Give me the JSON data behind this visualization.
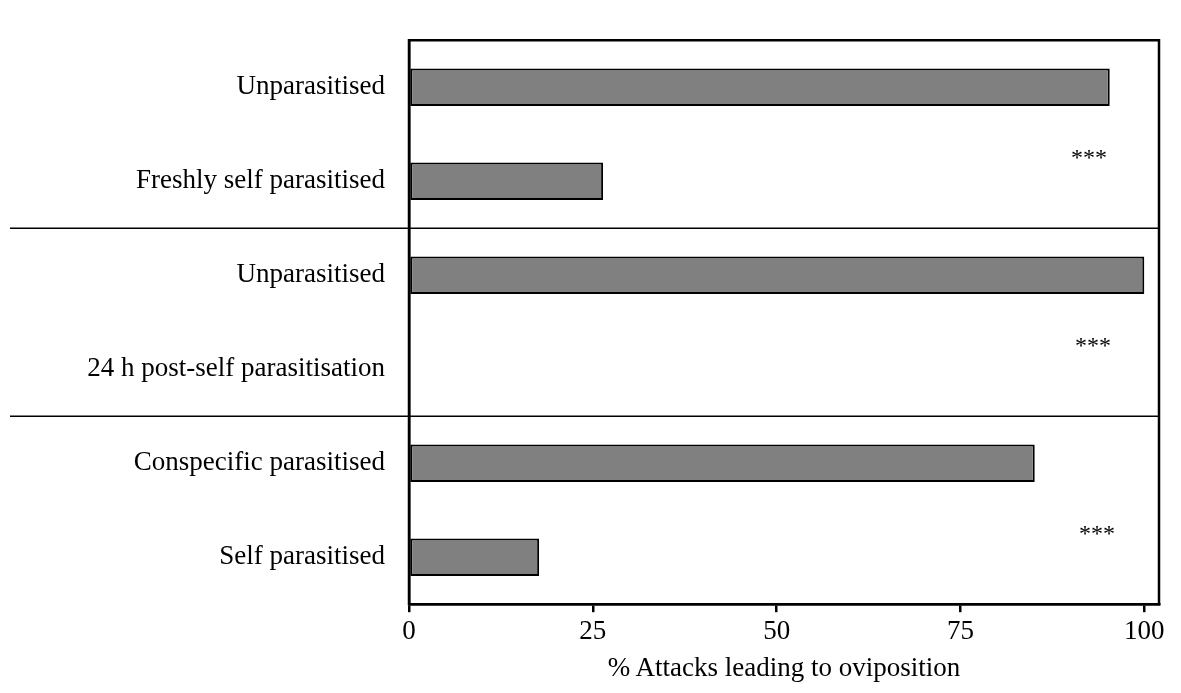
{
  "chart_data": {
    "type": "bar",
    "orientation": "horizontal",
    "xlabel": "% Attacks leading to oviposition",
    "categories": [
      "Unparasitised",
      "Freshly self parasitised",
      "Unparasitised",
      "24 h post-self parasitisation",
      "Conspecific parasitised",
      "Self parasitised"
    ],
    "values": [
      95.3,
      26.4,
      100,
      0,
      85.1,
      17.7
    ],
    "color": "#808080",
    "xlim": [
      0,
      102
    ],
    "xticks": [
      0,
      25,
      50,
      75,
      100
    ],
    "grid": false,
    "annotations": [
      "***",
      "***",
      "***"
    ]
  }
}
